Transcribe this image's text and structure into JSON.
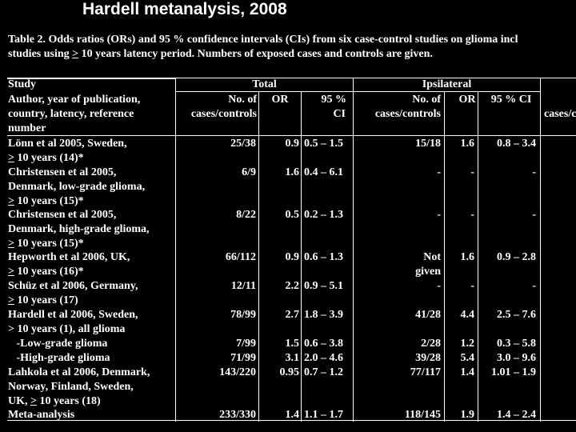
{
  "slide_title": "Hardell metanalysis, 2008",
  "caption": {
    "line1": "Table 2. Odds ratios (ORs) and 95 % confidence intervals (CIs) from six case-control studies on glioma incl",
    "line2_a": "studies using ",
    "line2_ge": ">",
    "line2_b": " 10 years latency period. Numbers of exposed cases and controls are given."
  },
  "header": {
    "study": "Study",
    "total": "Total",
    "ipsilateral": "Ipsilateral",
    "author_line1": "Author, year of publication,",
    "author_line2": "country, latency, reference",
    "author_line3": "number",
    "no_of": "No. of",
    "cases_controls": "cases/controls",
    "or": "OR",
    "ci95_a": "95 %",
    "ci_b": "CI",
    "ci95_full": "95 % CI",
    "cases_cut": "cases/c"
  },
  "rows": [
    {
      "study": [
        "Lönn et al 2005, Sweden,",
        "> 10 years (14)*"
      ],
      "total_n": "25/38",
      "total_or": "0.9",
      "total_ci": "0.5 – 1.5",
      "ipsi_n": "15/18",
      "ipsi_or": "1.6",
      "ipsi_ci": "0.8 – 3.4"
    },
    {
      "study": [
        "Christensen et al 2005,",
        "Denmark, low-grade glioma,",
        "> 10 years (15)*"
      ],
      "total_n": "6/9",
      "total_or": "1.6",
      "total_ci": "0.4 – 6.1",
      "ipsi_n": "-",
      "ipsi_or": "-",
      "ipsi_ci": "-"
    },
    {
      "study": [
        "Christensen et al 2005,",
        "Denmark, high-grade glioma,",
        "> 10 years (15)*"
      ],
      "total_n": "8/22",
      "total_or": "0.5",
      "total_ci": "0.2 – 1.3",
      "ipsi_n": "-",
      "ipsi_or": "-",
      "ipsi_ci": "-"
    },
    {
      "study": [
        "Hepworth et al 2006, UK,",
        "> 10 years (16)*"
      ],
      "total_n": "66/112",
      "total_or": "0.9",
      "total_ci": "0.6 – 1.3",
      "ipsi_n": "Not",
      "ipsi_n2": "given",
      "ipsi_or": "1.6",
      "ipsi_ci": "0.9 – 2.8"
    },
    {
      "study": [
        "Schüz et al 2006, Germany,",
        "> 10 years (17)"
      ],
      "total_n": "12/11",
      "total_or": "2.2",
      "total_ci": "0.9 – 5.1",
      "ipsi_n": "-",
      "ipsi_or": "-",
      "ipsi_ci": "-"
    },
    {
      "study": [
        "Hardell et al 2006, Sweden,",
        "> 10 years (1), all glioma"
      ],
      "total_n": "78/99",
      "total_or": "2.7",
      "total_ci": "1.8 – 3.9",
      "ipsi_n": "41/28",
      "ipsi_or": "4.4",
      "ipsi_ci": "2.5 – 7.6"
    },
    {
      "study": [
        "   -Low-grade glioma"
      ],
      "total_n": "7/99",
      "total_or": "1.5",
      "total_ci": "0.6 – 3.8",
      "ipsi_n": "2/28",
      "ipsi_or": "1.2",
      "ipsi_ci": "0.3 – 5.8"
    },
    {
      "study": [
        "   -High-grade glioma"
      ],
      "total_n": "71/99",
      "total_or": "3.1",
      "total_ci": "2.0 – 4.6",
      "ipsi_n": "39/28",
      "ipsi_or": "5.4",
      "ipsi_ci": "3.0 – 9.6"
    },
    {
      "study": [
        "Lahkola et al 2006, Denmark,",
        "Norway, Finland, Sweden,",
        "UK, > 10 years (18)"
      ],
      "total_n": "143/220",
      "total_or": "0.95",
      "total_ci": "0.7 – 1.2",
      "ipsi_n": "77/117",
      "ipsi_or": "1.4",
      "ipsi_ci": "1.01 – 1.9"
    },
    {
      "study": [
        "Meta-analysis"
      ],
      "total_n": "233/330",
      "total_or": "1.4",
      "total_ci": "1.1 – 1.7",
      "ipsi_n": "118/145",
      "ipsi_or": "1.9",
      "ipsi_ci": "1.4 – 2.4"
    }
  ]
}
